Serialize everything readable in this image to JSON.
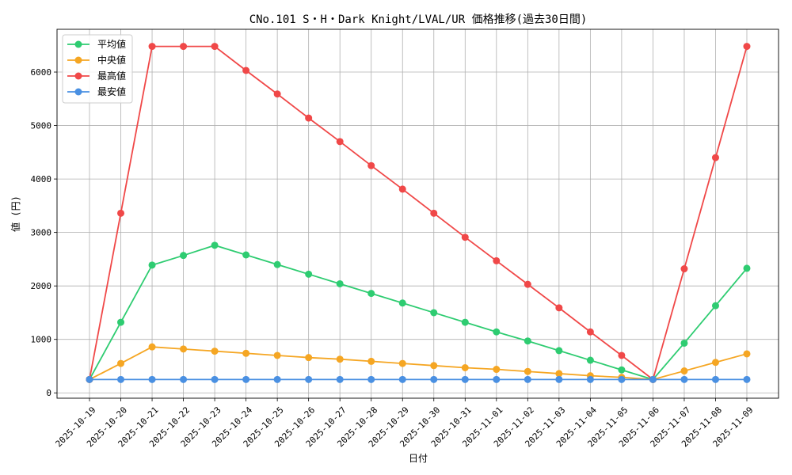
{
  "chart_data": {
    "type": "line",
    "title": "CNo.101 S・H・Dark Knight/LVAL/UR 価格推移(過去30日間)",
    "xlabel": "日付",
    "ylabel": "値 (円)",
    "ylim": [
      -100,
      6800
    ],
    "yticks": [
      0,
      1000,
      2000,
      3000,
      4000,
      5000,
      6000
    ],
    "grid": true,
    "legend_position": "top-left",
    "categories": [
      "2025-10-19",
      "2025-10-20",
      "2025-10-21",
      "2025-10-22",
      "2025-10-23",
      "2025-10-24",
      "2025-10-25",
      "2025-10-26",
      "2025-10-27",
      "2025-10-28",
      "2025-10-29",
      "2025-10-30",
      "2025-10-31",
      "2025-11-01",
      "2025-11-02",
      "2025-11-03",
      "2025-11-04",
      "2025-11-05",
      "2025-11-06",
      "2025-11-07",
      "2025-11-08",
      "2025-11-09"
    ],
    "series": [
      {
        "name": "平均値",
        "color": "#2ecc71",
        "values": [
          250,
          1320,
          2390,
          2570,
          2760,
          2580,
          2400,
          2220,
          2040,
          1860,
          1680,
          1500,
          1320,
          1140,
          970,
          790,
          610,
          430,
          250,
          930,
          1630,
          2330
        ]
      },
      {
        "name": "中央値",
        "color": "#f5a623",
        "values": [
          250,
          550,
          860,
          820,
          780,
          740,
          700,
          660,
          630,
          590,
          550,
          510,
          470,
          440,
          400,
          360,
          320,
          290,
          250,
          410,
          570,
          730
        ]
      },
      {
        "name": "最高値",
        "color": "#f04848",
        "values": [
          250,
          3360,
          6480,
          6480,
          6480,
          6030,
          5590,
          5140,
          4700,
          4250,
          3810,
          3360,
          2910,
          2470,
          2030,
          1590,
          1140,
          700,
          250,
          2320,
          4400,
          6480
        ]
      },
      {
        "name": "最安値",
        "color": "#4a90e2",
        "values": [
          250,
          250,
          250,
          250,
          250,
          250,
          250,
          250,
          250,
          250,
          250,
          250,
          250,
          250,
          250,
          250,
          250,
          250,
          250,
          250,
          250,
          250
        ]
      }
    ]
  }
}
